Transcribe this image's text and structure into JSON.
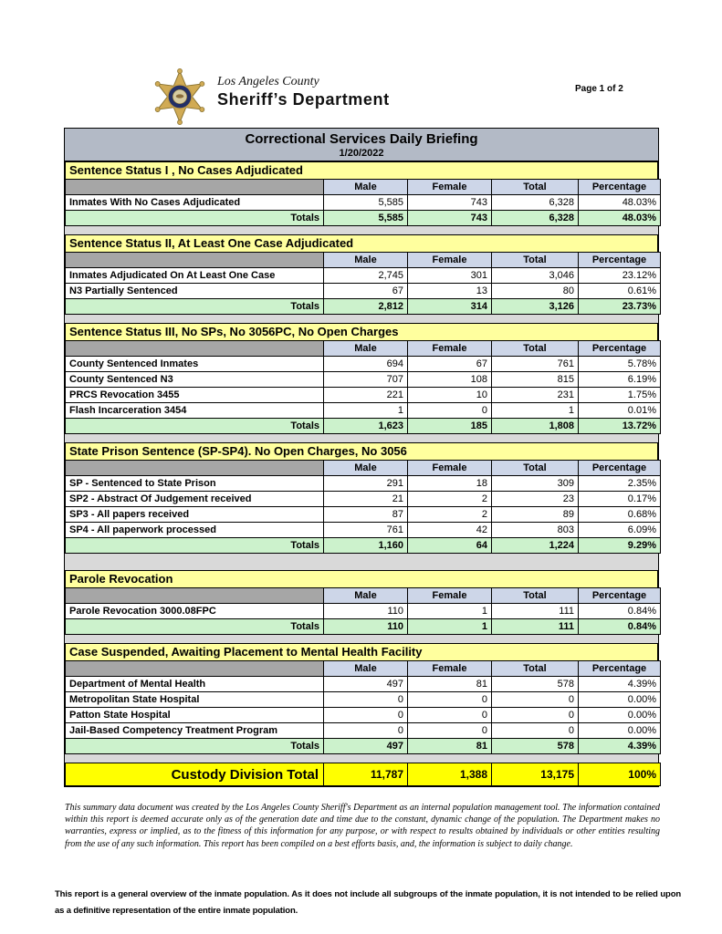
{
  "header": {
    "agency_line1": "Los Angeles County",
    "agency_line2": "Sheriff’s Department",
    "page_indicator": "Page 1 of 2"
  },
  "title": "Correctional Services Daily Briefing",
  "date": "1/20/2022",
  "columns": [
    "Male",
    "Female",
    "Total",
    "Percentage"
  ],
  "totals_label": "Totals",
  "sections": [
    {
      "heading": "Sentence Status I , No Cases Adjudicated",
      "rows": [
        {
          "label": "Inmates With No Cases Adjudicated",
          "male": "5,585",
          "female": "743",
          "total": "6,328",
          "percentage": "48.03%"
        }
      ],
      "totals": {
        "male": "5,585",
        "female": "743",
        "total": "6,328",
        "percentage": "48.03%"
      }
    },
    {
      "heading": "Sentence Status II, At Least One Case Adjudicated",
      "rows": [
        {
          "label": "Inmates Adjudicated On At Least One Case",
          "male": "2,745",
          "female": "301",
          "total": "3,046",
          "percentage": "23.12%"
        },
        {
          "label": "N3 Partially Sentenced",
          "male": "67",
          "female": "13",
          "total": "80",
          "percentage": "0.61%"
        }
      ],
      "totals": {
        "male": "2,812",
        "female": "314",
        "total": "3,126",
        "percentage": "23.73%"
      }
    },
    {
      "heading": "Sentence Status III, No SPs, No 3056PC, No Open Charges",
      "rows": [
        {
          "label": "County Sentenced Inmates",
          "male": "694",
          "female": "67",
          "total": "761",
          "percentage": "5.78%"
        },
        {
          "label": "County Sentenced N3",
          "male": "707",
          "female": "108",
          "total": "815",
          "percentage": "6.19%"
        },
        {
          "label": "PRCS Revocation 3455",
          "male": "221",
          "female": "10",
          "total": "231",
          "percentage": "1.75%"
        },
        {
          "label": "Flash Incarceration 3454",
          "male": "1",
          "female": "0",
          "total": "1",
          "percentage": "0.01%"
        }
      ],
      "totals": {
        "male": "1,623",
        "female": "185",
        "total": "1,808",
        "percentage": "13.72%"
      }
    },
    {
      "heading": "State Prison Sentence (SP-SP4). No Open Charges, No 3056",
      "rows": [
        {
          "label": "SP - Sentenced to State Prison",
          "male": "291",
          "female": "18",
          "total": "309",
          "percentage": "2.35%"
        },
        {
          "label": "SP2 - Abstract Of Judgement received",
          "male": "21",
          "female": "2",
          "total": "23",
          "percentage": "0.17%"
        },
        {
          "label": "SP3 - All papers received",
          "male": "87",
          "female": "2",
          "total": "89",
          "percentage": "0.68%"
        },
        {
          "label": "SP4 - All paperwork processed",
          "male": "761",
          "female": "42",
          "total": "803",
          "percentage": "6.09%"
        }
      ],
      "totals": {
        "male": "1,160",
        "female": "64",
        "total": "1,224",
        "percentage": "9.29%"
      }
    },
    {
      "heading": "Parole Revocation",
      "rows": [
        {
          "label": "Parole Revocation 3000.08FPC",
          "male": "110",
          "female": "1",
          "total": "111",
          "percentage": "0.84%"
        }
      ],
      "totals": {
        "male": "110",
        "female": "1",
        "total": "111",
        "percentage": "0.84%"
      }
    },
    {
      "heading": "Case Suspended, Awaiting Placement to Mental Health Facility",
      "rows": [
        {
          "label": "Department of Mental Health",
          "male": "497",
          "female": "81",
          "total": "578",
          "percentage": "4.39%"
        },
        {
          "label": "Metropolitan State Hospital",
          "male": "0",
          "female": "0",
          "total": "0",
          "percentage": "0.00%"
        },
        {
          "label": "Patton State Hospital",
          "male": "0",
          "female": "0",
          "total": "0",
          "percentage": "0.00%"
        },
        {
          "label": "Jail-Based Competency Treatment Program",
          "male": "0",
          "female": "0",
          "total": "0",
          "percentage": "0.00%"
        }
      ],
      "totals": {
        "male": "497",
        "female": "81",
        "total": "578",
        "percentage": "4.39%"
      }
    }
  ],
  "grand_total": {
    "label": "Custody Division Total",
    "male": "11,787",
    "female": "1,388",
    "total": "13,175",
    "percentage": "100%"
  },
  "disclaimer": "This summary data document was created by the Los Angeles County Sheriff's Department as an internal population management tool.  The information contained within this report is deemed accurate only as of the generation date and time due to the constant, dynamic change of the population.  The Department makes no warranties, express or implied, as to the fitness of this information for any purpose, or with respect to results obtained by individuals or other entities resulting from the use of any such information.  This report has been compiled on a best efforts basis, and, the information is subject to daily change.",
  "footnote": "This report is a general overview of the inmate population.  As it does not include all subgroups of the inmate population, it is not intended to be relied upon as a definitive representation of the entire inmate population.",
  "icons": {
    "badge": "sheriff-star-badge"
  },
  "colors": {
    "title_bar": "#b3bac6",
    "section_heading": "#ffff9e",
    "column_header": "#cdd6e8",
    "corner_header": "#a6a6a6",
    "totals_row": "#ccf2cc",
    "grand_total_row": "#ffff00",
    "gap_background": "#d9d9d9",
    "badge_gold": "#d1ab55",
    "badge_navy": "#232f66"
  }
}
